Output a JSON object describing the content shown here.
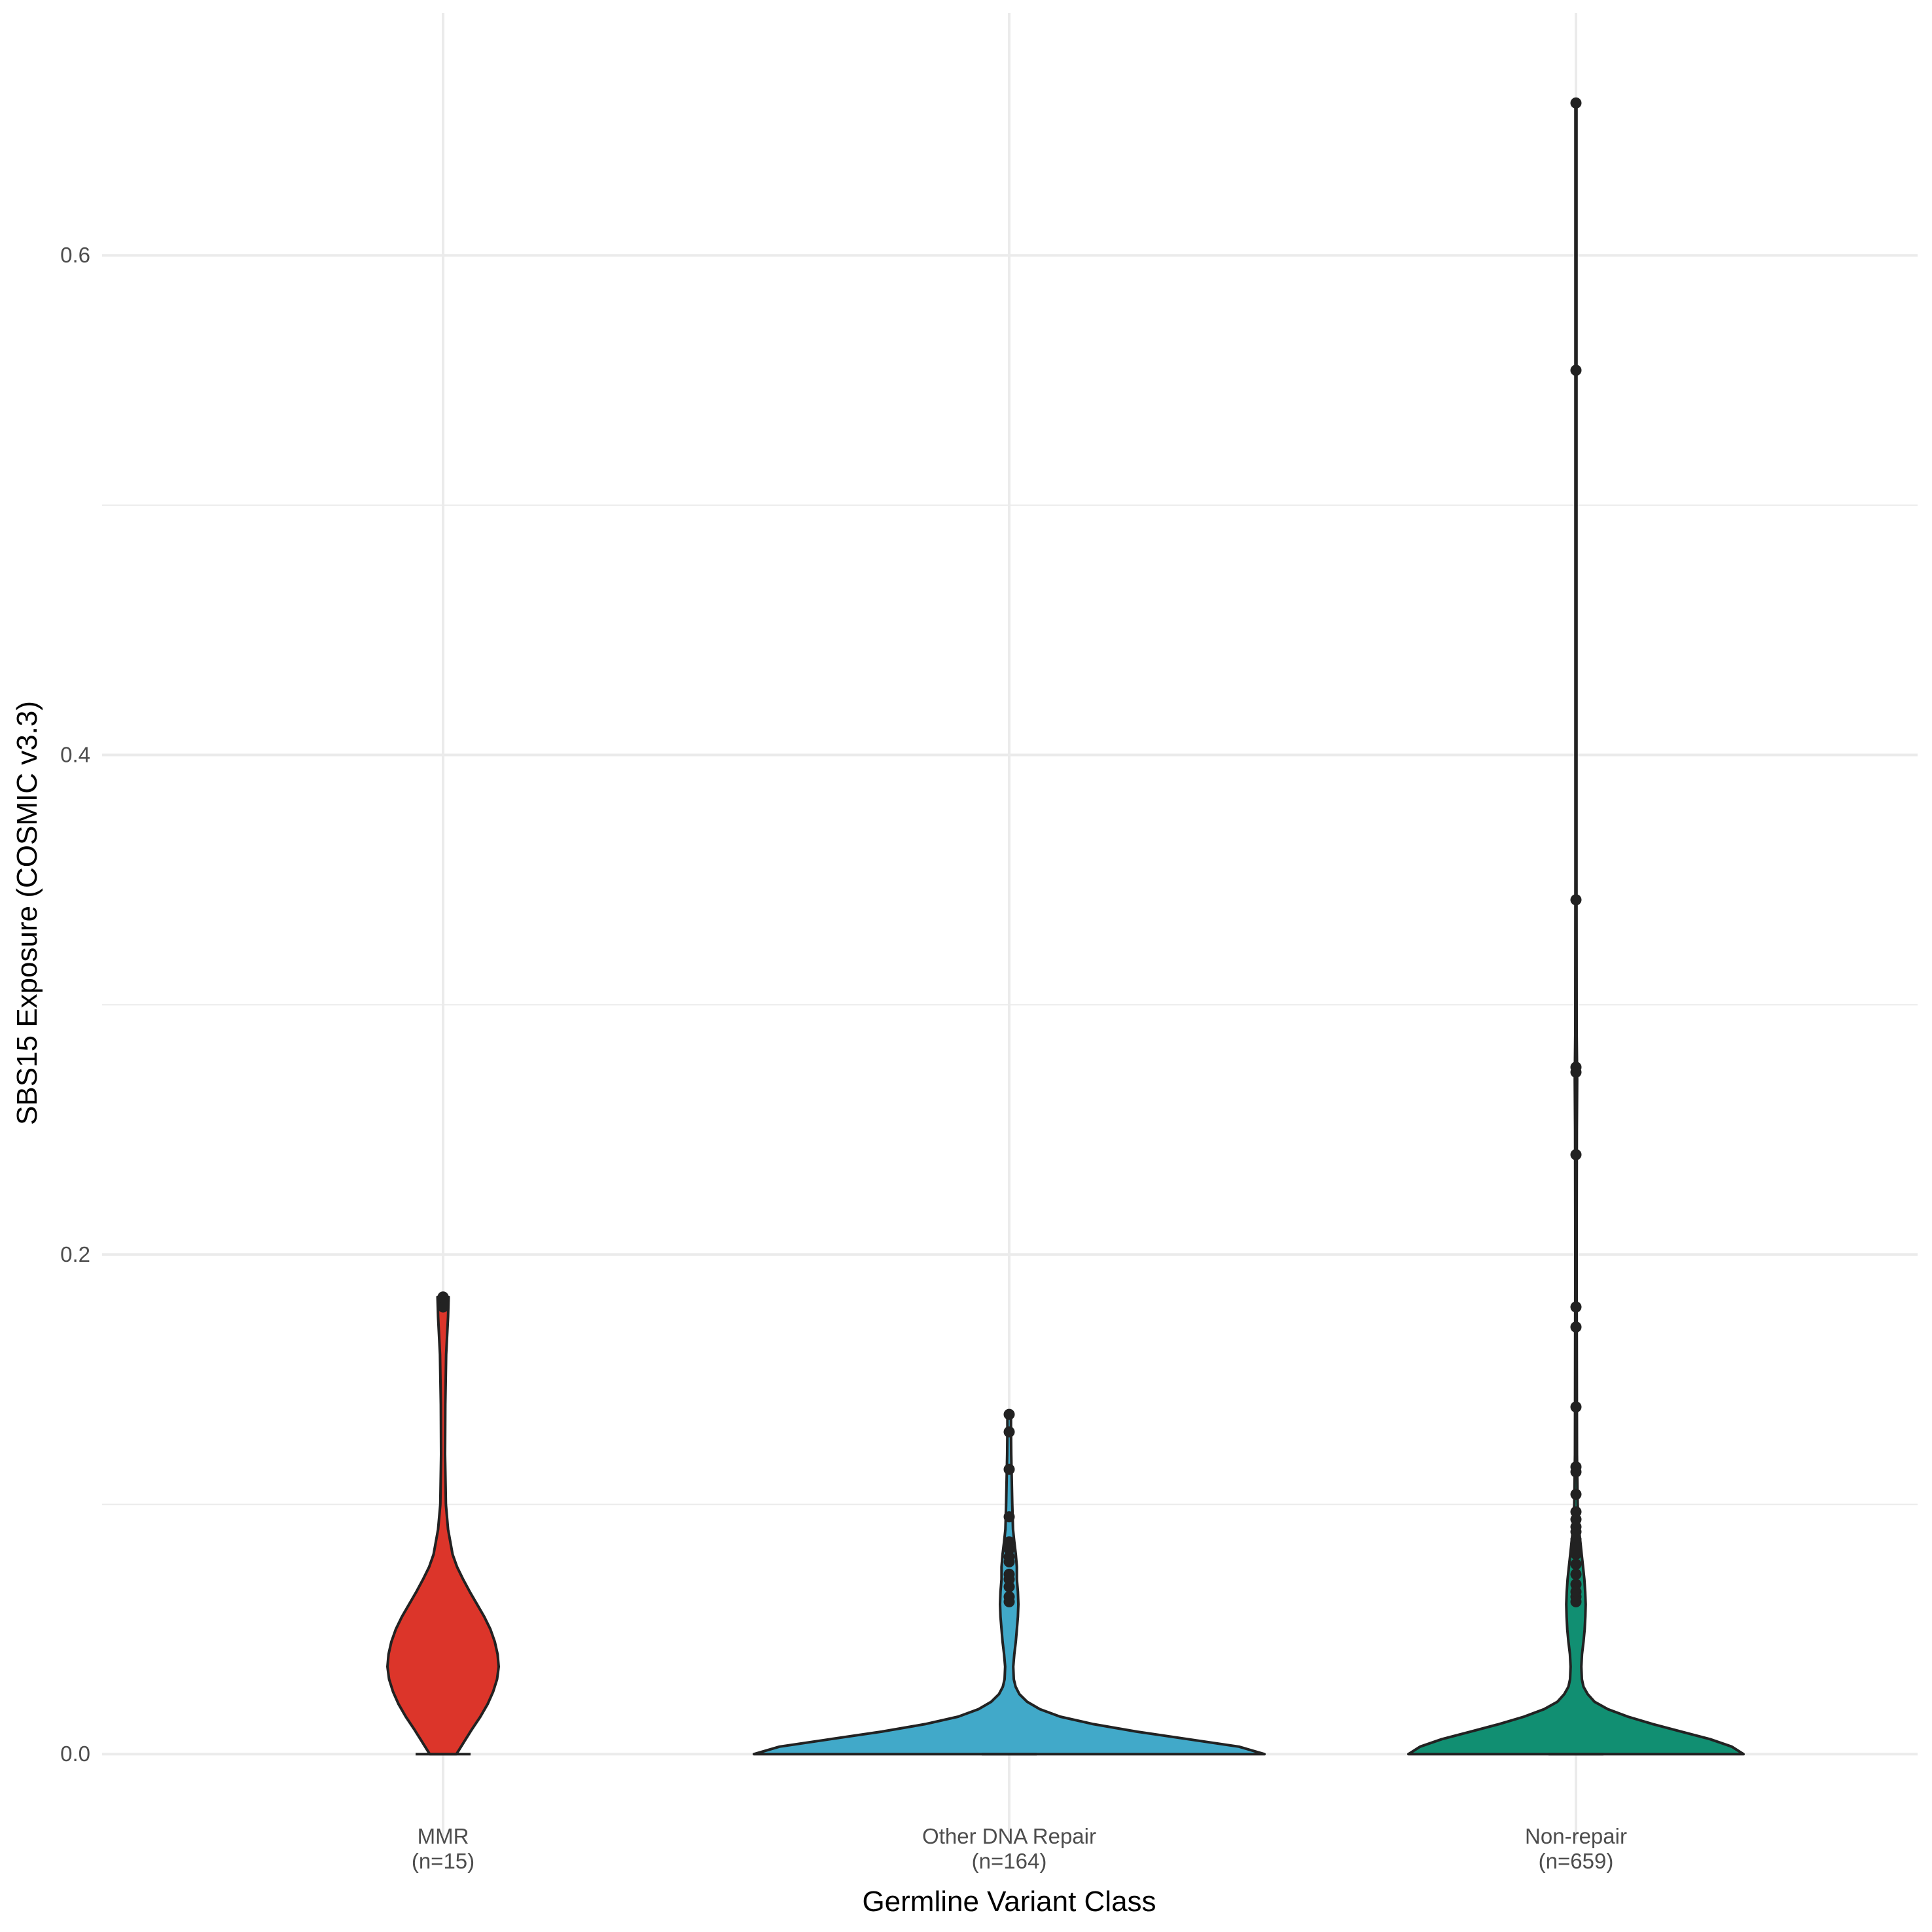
{
  "chart_data": {
    "type": "violin",
    "xlabel": "Germline Variant Class",
    "ylabel": "SBS15 Exposure (COSMIC v3.3)",
    "ylim": [
      -0.034,
      0.697
    ],
    "yticks": [
      0.0,
      0.2,
      0.4,
      0.6
    ],
    "ytick_labels": [
      "0.0",
      "0.2",
      "0.4",
      "0.6"
    ],
    "minor_yticks": [
      0.1,
      0.3,
      0.5
    ],
    "grid": true,
    "categories": [
      {
        "key": "MMR",
        "label_line1": "MMR",
        "label_line2": "(n=15)"
      },
      {
        "key": "Other DNA Repair",
        "label_line1": "Other DNA Repair",
        "label_line2": "(n=164)"
      },
      {
        "key": "Non-repair",
        "label_line1": "Non-repair",
        "label_line2": "(n=659)"
      }
    ],
    "groups": [
      {
        "category": "MMR",
        "color": "#dc352a",
        "max": 0.183,
        "density_profile": [
          [
            0.0,
            0.24
          ],
          [
            0.005,
            0.38
          ],
          [
            0.01,
            0.52
          ],
          [
            0.015,
            0.67
          ],
          [
            0.02,
            0.8
          ],
          [
            0.025,
            0.9
          ],
          [
            0.03,
            0.97
          ],
          [
            0.035,
            1.0
          ],
          [
            0.04,
            0.98
          ],
          [
            0.045,
            0.93
          ],
          [
            0.05,
            0.85
          ],
          [
            0.055,
            0.74
          ],
          [
            0.06,
            0.61
          ],
          [
            0.065,
            0.48
          ],
          [
            0.07,
            0.36
          ],
          [
            0.075,
            0.25
          ],
          [
            0.08,
            0.17
          ],
          [
            0.09,
            0.09
          ],
          [
            0.1,
            0.05
          ],
          [
            0.12,
            0.035
          ],
          [
            0.14,
            0.04
          ],
          [
            0.16,
            0.055
          ],
          [
            0.175,
            0.09
          ],
          [
            0.183,
            0.1
          ]
        ],
        "points": [
          0.183,
          0.181,
          0.179
        ]
      },
      {
        "category": "Other DNA Repair",
        "color": "#41a9c9",
        "max": 0.136,
        "density_profile": [
          [
            0.0,
            1.0
          ],
          [
            0.003,
            0.9
          ],
          [
            0.006,
            0.7
          ],
          [
            0.009,
            0.5
          ],
          [
            0.012,
            0.33
          ],
          [
            0.015,
            0.2
          ],
          [
            0.018,
            0.12
          ],
          [
            0.021,
            0.07
          ],
          [
            0.024,
            0.04
          ],
          [
            0.027,
            0.025
          ],
          [
            0.03,
            0.018
          ],
          [
            0.035,
            0.016
          ],
          [
            0.04,
            0.02
          ],
          [
            0.045,
            0.026
          ],
          [
            0.05,
            0.03
          ],
          [
            0.055,
            0.034
          ],
          [
            0.06,
            0.036
          ],
          [
            0.065,
            0.034
          ],
          [
            0.07,
            0.03
          ],
          [
            0.075,
            0.03
          ],
          [
            0.08,
            0.026
          ],
          [
            0.085,
            0.02
          ],
          [
            0.09,
            0.015
          ],
          [
            0.1,
            0.012
          ],
          [
            0.11,
            0.01
          ],
          [
            0.12,
            0.008
          ],
          [
            0.13,
            0.007
          ],
          [
            0.136,
            0.007
          ]
        ],
        "points": [
          0.136,
          0.129,
          0.114,
          0.095,
          0.085,
          0.082,
          0.079,
          0.077,
          0.072,
          0.07,
          0.067,
          0.063,
          0.061
        ]
      },
      {
        "category": "Non-repair",
        "color": "#118f72",
        "max": 0.661,
        "density_profile": [
          [
            0.0,
            1.0
          ],
          [
            0.003,
            0.93
          ],
          [
            0.006,
            0.8
          ],
          [
            0.009,
            0.63
          ],
          [
            0.012,
            0.46
          ],
          [
            0.015,
            0.31
          ],
          [
            0.018,
            0.19
          ],
          [
            0.021,
            0.11
          ],
          [
            0.024,
            0.07
          ],
          [
            0.027,
            0.045
          ],
          [
            0.03,
            0.035
          ],
          [
            0.035,
            0.032
          ],
          [
            0.04,
            0.036
          ],
          [
            0.045,
            0.045
          ],
          [
            0.05,
            0.052
          ],
          [
            0.055,
            0.056
          ],
          [
            0.06,
            0.058
          ],
          [
            0.065,
            0.055
          ],
          [
            0.07,
            0.05
          ],
          [
            0.075,
            0.042
          ],
          [
            0.08,
            0.034
          ],
          [
            0.085,
            0.026
          ],
          [
            0.09,
            0.018
          ],
          [
            0.1,
            0.01
          ],
          [
            0.12,
            0.006
          ],
          [
            0.15,
            0.005
          ],
          [
            0.2,
            0.004
          ],
          [
            0.25,
            0.005
          ],
          [
            0.27,
            0.007
          ],
          [
            0.29,
            0.004
          ],
          [
            0.35,
            0.003
          ],
          [
            0.45,
            0.003
          ],
          [
            0.55,
            0.003
          ],
          [
            0.6,
            0.003
          ],
          [
            0.661,
            0.003
          ]
        ],
        "points": [
          0.661,
          0.554,
          0.342,
          0.275,
          0.273,
          0.24,
          0.179,
          0.171,
          0.139,
          0.115,
          0.113,
          0.104,
          0.097,
          0.094,
          0.091,
          0.089,
          0.086,
          0.083,
          0.08,
          0.076,
          0.072,
          0.068,
          0.065,
          0.063,
          0.061
        ]
      }
    ]
  }
}
